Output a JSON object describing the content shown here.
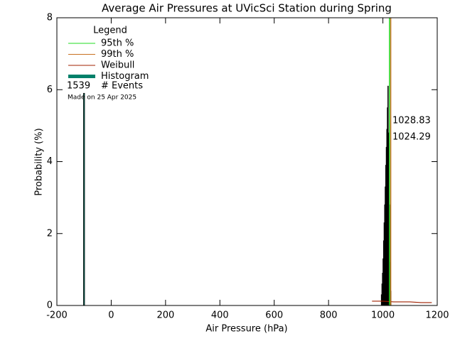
{
  "chart_data": {
    "type": "histogram",
    "title": "Average Air Pressures at UVicSci Station during Spring",
    "x_label": "Air Pressure (hPa)",
    "y_label": "Probability (%)",
    "xlim": [
      -200,
      1200
    ],
    "xticks": [
      -200,
      0,
      200,
      400,
      600,
      800,
      1000,
      1200
    ],
    "ylim": [
      0,
      8
    ],
    "yticks": [
      0,
      2,
      4,
      6,
      8
    ],
    "legend_title": "Legend",
    "bins": [
      994,
      996,
      998,
      1000,
      1002,
      1004,
      1006,
      1008,
      1010,
      1012,
      1014,
      1016,
      1018,
      1020,
      1022,
      1024,
      1026,
      1028,
      1030
    ],
    "values": [
      0.3,
      0.6,
      0.9,
      1.3,
      1.8,
      2.3,
      2.8,
      3.3,
      3.9,
      4.4,
      4.9,
      5.5,
      6.1,
      4.8,
      4.5,
      2.8,
      1.2,
      0.4
    ],
    "outlier_bar": {
      "x": -100,
      "value": 5.9
    },
    "histogram_name": "Histogram",
    "histogram_color": "#00806a",
    "percentiles": [
      {
        "name": "95th %",
        "value": 1024.29,
        "color": "#22dd22"
      },
      {
        "name": "99th %",
        "value": 1028.83,
        "color": "#c87020"
      }
    ],
    "weibull": {
      "name": "Weibull",
      "color": "#a02000",
      "x": [
        960,
        1000,
        1040,
        1100,
        1140,
        1180
      ],
      "values": [
        0.12,
        0.12,
        0.1,
        0.1,
        0.08,
        0.08
      ]
    },
    "events": 1539,
    "events_label": "# Events",
    "footnote": "Made on 25 Apr 2025"
  }
}
